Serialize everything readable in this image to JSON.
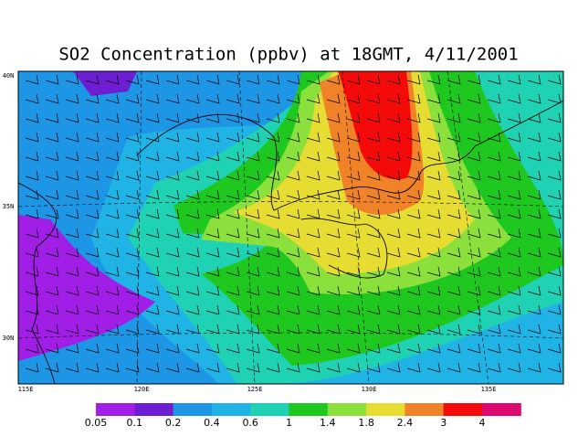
{
  "title": "SO2 Concentration (ppbv) at 18GMT, 4/11/2001",
  "map": {
    "lon_labels": [
      "115E",
      "120E",
      "125E",
      "130E",
      "135E"
    ],
    "lat_labels": [
      "40N",
      "35N",
      "30N"
    ]
  },
  "colorbar": {
    "colors": [
      "#a01ee6",
      "#6e1ed2",
      "#1e96e6",
      "#20b4e6",
      "#20d2b4",
      "#1ec81e",
      "#8ce03c",
      "#e6dc32",
      "#f08228",
      "#f50a0a",
      "#dc0a6e"
    ],
    "labels": [
      "0.05",
      "0.1",
      "0.2",
      "0.4",
      "0.6",
      "1",
      "1.4",
      "1.8",
      "2.4",
      "3",
      "4"
    ]
  }
}
